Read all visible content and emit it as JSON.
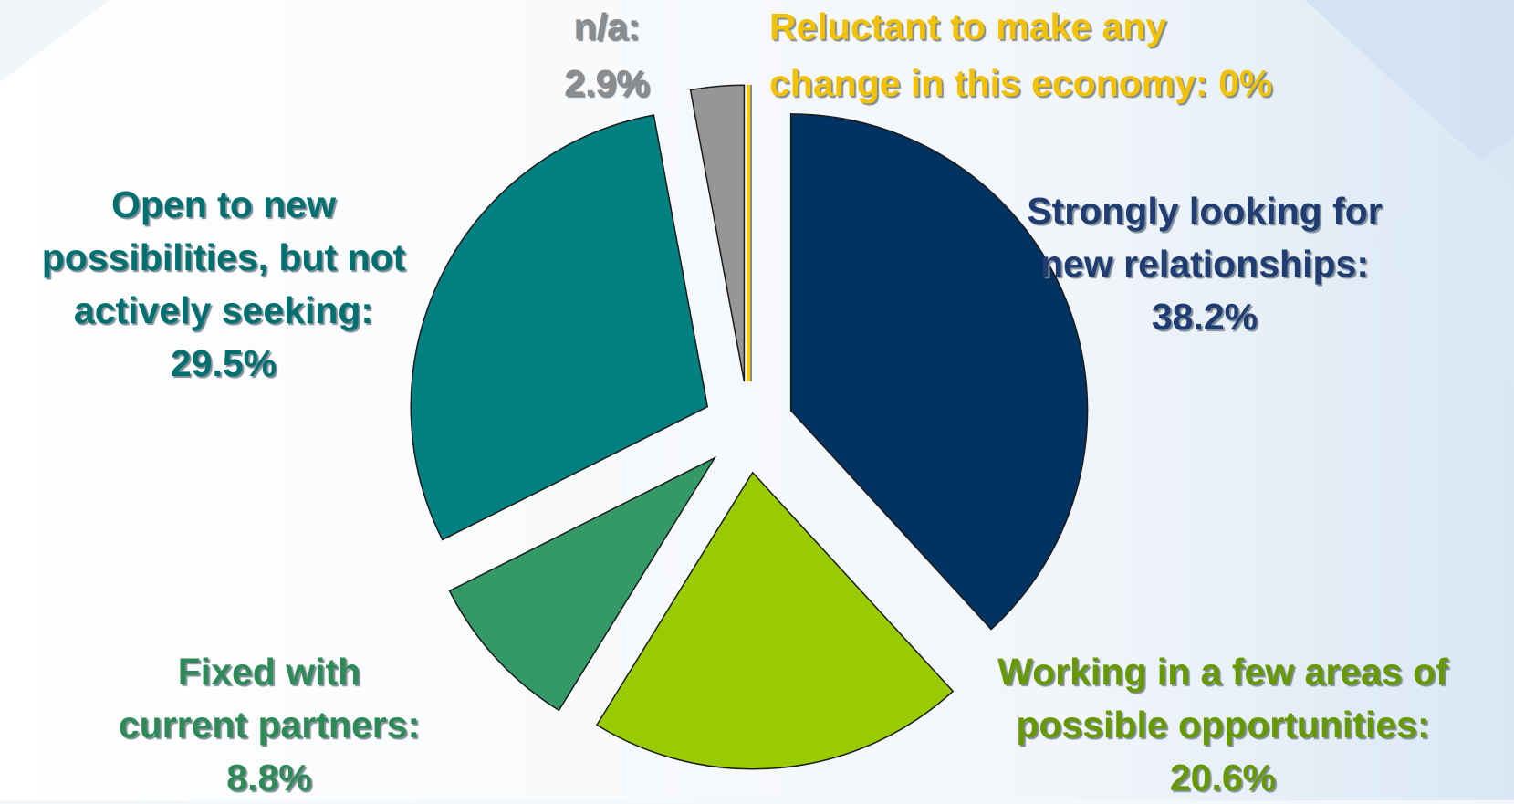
{
  "chart_data": {
    "type": "pie",
    "exploded": true,
    "slices": [
      {
        "key": "strongly",
        "lines": [
          "Strongly looking for",
          "new relationships:",
          "38.2%"
        ],
        "value": 38.2,
        "color": "#003262"
      },
      {
        "key": "working",
        "lines": [
          "Working in a few areas of",
          "possible opportunities:",
          "20.6%"
        ],
        "value": 20.6,
        "color": "#99cc00"
      },
      {
        "key": "fixed",
        "lines": [
          "Fixed with",
          "current partners:",
          "8.8%"
        ],
        "value": 8.8,
        "color": "#339966"
      },
      {
        "key": "open",
        "lines": [
          "Open to new",
          "possibilities, but not",
          "actively seeking:",
          "29.5%"
        ],
        "value": 29.5,
        "color": "#008080"
      },
      {
        "key": "na",
        "lines": [
          "n/a:",
          "2.9%"
        ],
        "value": 2.9,
        "color": "#969696"
      },
      {
        "key": "reluctant",
        "lines": [
          "Reluctant to make any",
          "change in this economy: 0%"
        ],
        "value": 0,
        "color": "#ffcc00"
      }
    ],
    "label_colors": {
      "strongly": "#1f3d73",
      "working": "#669900",
      "fixed": "#2e8b57",
      "open": "#006f6f",
      "na": "#8c8c8c",
      "reluctant": "#f2c200"
    }
  }
}
